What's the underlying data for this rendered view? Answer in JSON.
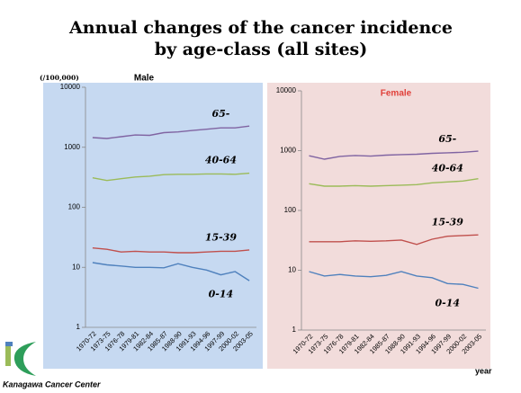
{
  "title": [
    "Annual changes of the cancer incidence",
    "by age-class (all sites)"
  ],
  "y_label": "(/100,000)",
  "x_label": "year",
  "footer": "Kanagawa Cancer Center",
  "chart_data": [
    {
      "type": "line",
      "title": "Male",
      "title_color": "#000000",
      "background": "#c6d9f1",
      "categories": [
        "1970-72",
        "1973-75",
        "1976-78",
        "1979-81",
        "1982-84",
        "1985-87",
        "1988-90",
        "1991-93",
        "1994-96",
        "1997-99",
        "2000-02",
        "2003-05"
      ],
      "log_scale": true,
      "ylim": [
        1,
        10000
      ],
      "yticks": [
        1,
        10,
        100,
        1000,
        10000
      ],
      "series": [
        {
          "name": "65-",
          "color": "#8064a2",
          "values": [
            1450,
            1400,
            1500,
            1600,
            1580,
            1750,
            1800,
            1900,
            2000,
            2100,
            2100,
            2250
          ]
        },
        {
          "name": "40-64",
          "color": "#9bbb59",
          "values": [
            310,
            280,
            300,
            320,
            330,
            350,
            355,
            355,
            360,
            360,
            355,
            370
          ]
        },
        {
          "name": "15-39",
          "color": "#c0504d",
          "values": [
            21,
            20,
            18,
            18.5,
            18,
            18,
            17.5,
            17.5,
            18,
            18.5,
            18.5,
            19.5
          ]
        },
        {
          "name": "0-14",
          "color": "#4f81bd",
          "values": [
            12,
            11,
            10.5,
            10,
            10,
            9.8,
            11.5,
            10,
            9,
            7.5,
            8.5,
            6
          ]
        }
      ]
    },
    {
      "type": "line",
      "title": "Female",
      "title_color": "#e0403a",
      "background": "#f2dcdb",
      "categories": [
        "1970-72",
        "1973-75",
        "1976-78",
        "1979-81",
        "1982-84",
        "1985-87",
        "1988-90",
        "1991-93",
        "1994-96",
        "1997-99",
        "2000-02",
        "2003-05"
      ],
      "log_scale": true,
      "ylim": [
        1,
        10000
      ],
      "yticks": [
        1,
        10,
        100,
        1000,
        10000
      ],
      "series": [
        {
          "name": "65-",
          "color": "#8064a2",
          "values": [
            820,
            720,
            800,
            830,
            810,
            840,
            860,
            870,
            900,
            920,
            940,
            980
          ]
        },
        {
          "name": "40-64",
          "color": "#9bbb59",
          "values": [
            280,
            255,
            255,
            260,
            255,
            260,
            265,
            270,
            290,
            300,
            310,
            340
          ]
        },
        {
          "name": "15-39",
          "color": "#c0504d",
          "values": [
            30,
            30,
            30,
            31,
            30.5,
            31,
            32,
            27,
            33,
            37,
            38,
            39
          ]
        },
        {
          "name": "0-14",
          "color": "#4f81bd",
          "values": [
            9.5,
            8,
            8.5,
            8,
            7.8,
            8.2,
            9.5,
            8,
            7.5,
            6,
            5.8,
            5
          ]
        }
      ]
    }
  ]
}
